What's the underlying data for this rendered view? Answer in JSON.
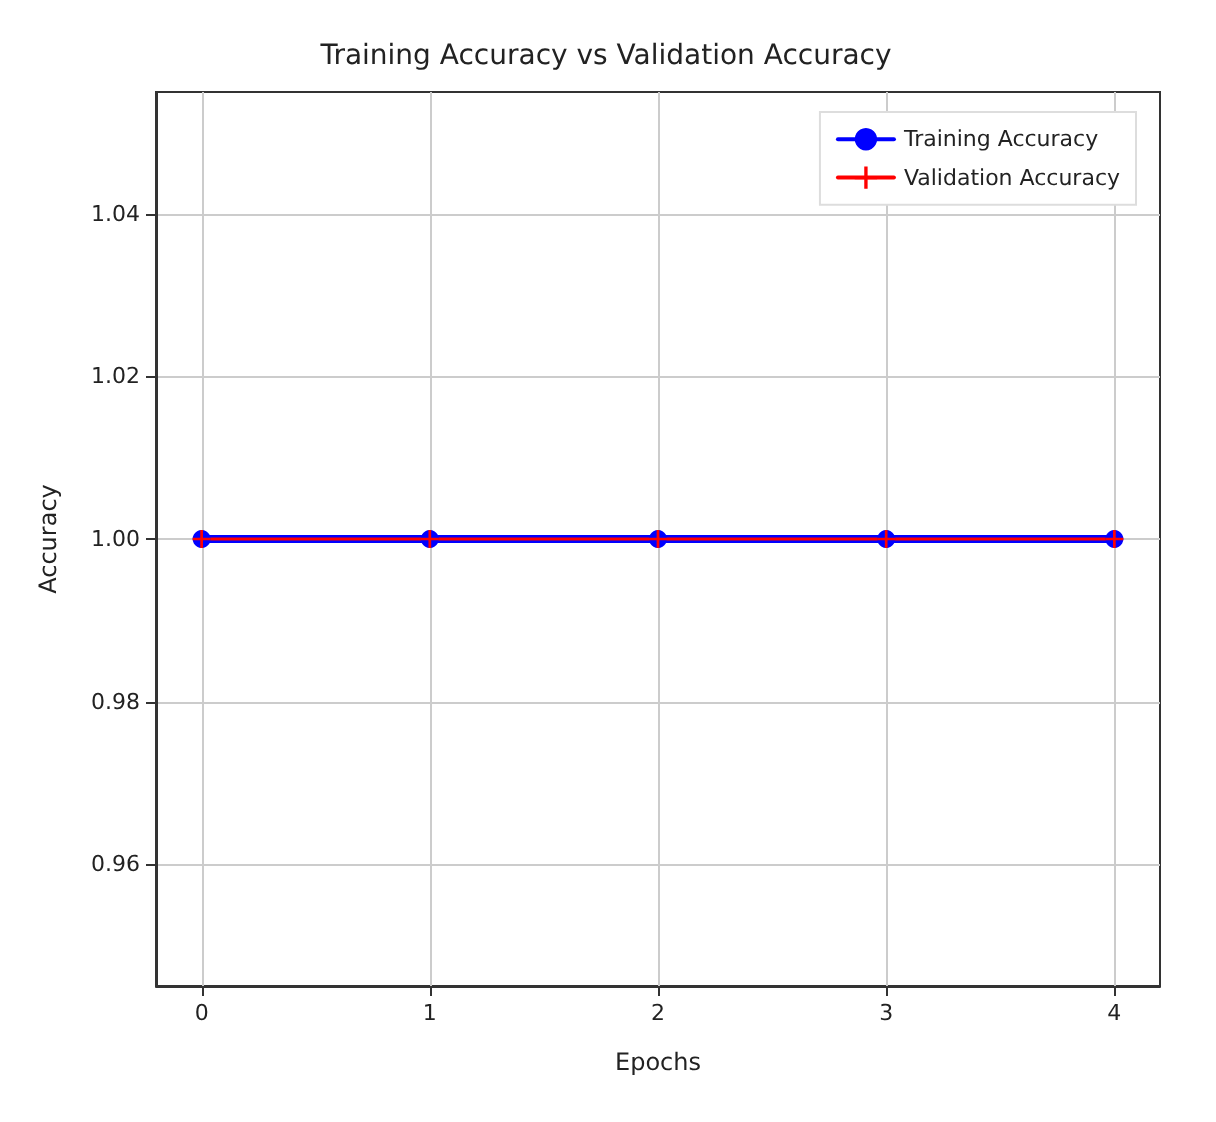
{
  "chart_data": {
    "type": "line",
    "title": "Training Accuracy vs Validation Accuracy",
    "xlabel": "Epochs",
    "ylabel": "Accuracy",
    "x": [
      0,
      1,
      2,
      3,
      4
    ],
    "series": [
      {
        "name": "Training Accuracy",
        "color": "#0000ff",
        "values": [
          1.0,
          1.0,
          1.0,
          1.0,
          1.0
        ],
        "marker": "circle"
      },
      {
        "name": "Validation Accuracy",
        "color": "#ff0000",
        "values": [
          1.0,
          1.0,
          1.0,
          1.0,
          1.0
        ],
        "marker": "cross"
      }
    ],
    "xlim": [
      -0.2,
      4.2
    ],
    "xticks": [
      0,
      1,
      2,
      3,
      4
    ],
    "ylim": [
      0.945,
      1.055
    ],
    "yticks": [
      0.96,
      0.98,
      {
        "value": 1.0,
        "label": "1.00"
      },
      1.02,
      1.04
    ],
    "grid": true,
    "legend": "top right"
  }
}
